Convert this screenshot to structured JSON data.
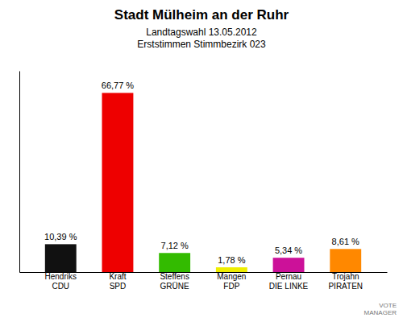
{
  "chart_data": {
    "type": "bar",
    "title": "Stadt Mülheim an der Ruhr",
    "subtitle": "Landtagswahl 13.05.2012\nErststimmen Stimmbezirk 023",
    "annotations": [
      "VOTE\nMANAGER"
    ],
    "categories": [
      "Hendriks\nCDU",
      "Kraft\nSPD",
      "Steffens\nGRÜNE",
      "Mangen\nFDP",
      "Pernau\nDIE LINKE",
      "Trojahn\nPIRATEN"
    ],
    "values": [
      10.39,
      66.77,
      7.12,
      1.78,
      5.34,
      8.61
    ],
    "value_labels": [
      "10,39 %",
      "66,77 %",
      "7,12 %",
      "1,78 %",
      "5,34 %",
      "8,61 %"
    ],
    "colors": [
      "#111111",
      "#EE0000",
      "#33BB00",
      "#EEEE00",
      "#CC1199",
      "#FF8800"
    ],
    "ylim": [
      0,
      75
    ],
    "data_labels": true,
    "tick_labels": "x",
    "grid": false
  }
}
